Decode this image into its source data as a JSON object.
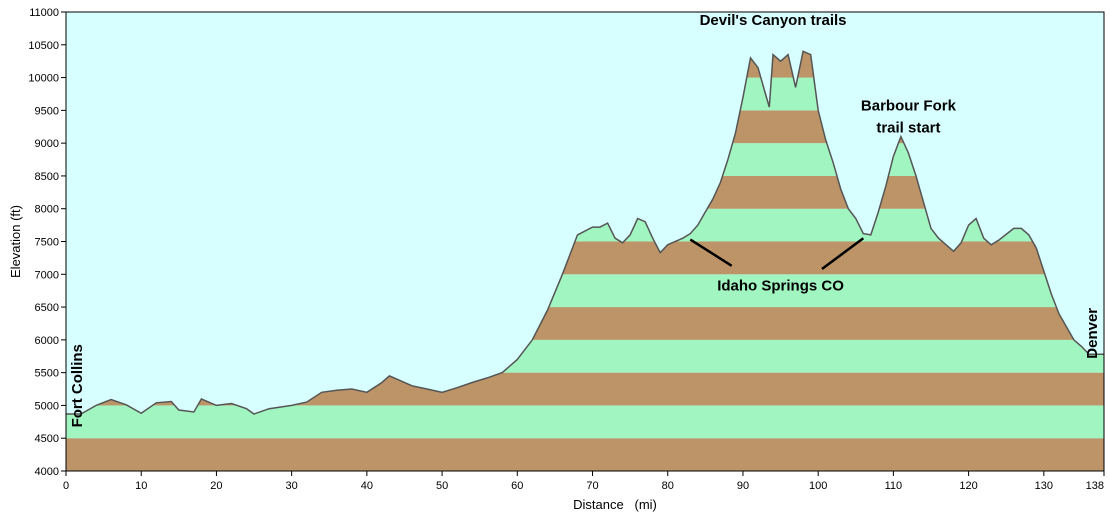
{
  "chart_data": {
    "type": "area",
    "title": "",
    "xlabel": "Distance   (mi)",
    "ylabel": "Elevation (ft)",
    "xlim": [
      0,
      138
    ],
    "ylim": [
      4000,
      11000
    ],
    "xticks": [
      0,
      10,
      20,
      30,
      40,
      50,
      60,
      70,
      80,
      90,
      100,
      110,
      120,
      130,
      138
    ],
    "yticks": [
      4000,
      4500,
      5000,
      5500,
      6000,
      6500,
      7000,
      7500,
      8000,
      8500,
      9000,
      9500,
      10000,
      10500,
      11000
    ],
    "band_interval": 500,
    "grid": false,
    "colors": {
      "background": "#d8ffff",
      "band_light": "#a0f5c0",
      "band_dark": "#bd9468",
      "profile_line": "#555555"
    },
    "series": [
      {
        "x": [
          0,
          2,
          4,
          6,
          8,
          10,
          12,
          14,
          15,
          17,
          18,
          20,
          22,
          24,
          25,
          27,
          30,
          32,
          34,
          36,
          38,
          40,
          42,
          43,
          44,
          46,
          48,
          50,
          52,
          54,
          56,
          58,
          60,
          62,
          64,
          66,
          68,
          70,
          71,
          72,
          73,
          74,
          75,
          76,
          77,
          78,
          79,
          80,
          82,
          83,
          84,
          85,
          86,
          87,
          88,
          89,
          90,
          91,
          92,
          93,
          93.5,
          94,
          95,
          96,
          97,
          98,
          99,
          100,
          101,
          102,
          103,
          104,
          105,
          106,
          107,
          108,
          109,
          110,
          111,
          112,
          113,
          114,
          115,
          116,
          118,
          119,
          120,
          121,
          122,
          123,
          124,
          126,
          127,
          128,
          129,
          130,
          131,
          132,
          133,
          134,
          135,
          136,
          137,
          138
        ],
        "y": [
          4870,
          4870,
          5000,
          5090,
          5010,
          4880,
          5040,
          5060,
          4930,
          4900,
          5100,
          5000,
          5030,
          4950,
          4870,
          4950,
          5000,
          5050,
          5200,
          5230,
          5250,
          5200,
          5350,
          5450,
          5400,
          5300,
          5250,
          5200,
          5270,
          5350,
          5420,
          5500,
          5700,
          6000,
          6450,
          7000,
          7600,
          7720,
          7720,
          7780,
          7550,
          7480,
          7600,
          7850,
          7800,
          7550,
          7330,
          7450,
          7550,
          7620,
          7750,
          7950,
          8150,
          8400,
          8750,
          9150,
          9700,
          10300,
          10150,
          9750,
          9550,
          10350,
          10250,
          10350,
          9850,
          10400,
          10350,
          9500,
          9050,
          8700,
          8300,
          8000,
          7850,
          7620,
          7600,
          7950,
          8350,
          8800,
          9100,
          8850,
          8500,
          8100,
          7700,
          7550,
          7350,
          7480,
          7750,
          7850,
          7550,
          7450,
          7520,
          7700,
          7700,
          7600,
          7400,
          7050,
          6700,
          6400,
          6200,
          6000,
          5900,
          5780,
          5780,
          5780
        ]
      }
    ],
    "annotations": [
      {
        "lines": [
          "Devil's Canyon trails"
        ],
        "x": 94,
        "y": 10800
      },
      {
        "lines": [
          "Barbour Fork",
          "trail start"
        ],
        "x": 112,
        "y": 9500
      },
      {
        "lines": [
          "Idaho Springs CO"
        ],
        "x": 95,
        "y": 6750
      },
      {
        "lines": [
          "Fort Collins"
        ],
        "x": 2.1,
        "y": 5300,
        "rotate": -90
      },
      {
        "lines": [
          "Denver"
        ],
        "x": 137.1,
        "y": 6100,
        "rotate": -90
      }
    ],
    "leaders": [
      {
        "from": [
          83,
          7530
        ],
        "to": [
          88.5,
          7130
        ]
      },
      {
        "from": [
          100.5,
          7080
        ],
        "to": [
          106,
          7550
        ]
      }
    ]
  }
}
